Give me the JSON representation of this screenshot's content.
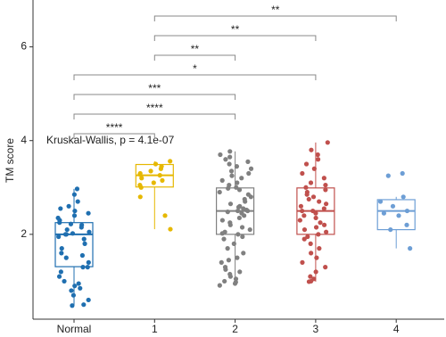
{
  "chart_data": {
    "type": "box",
    "y_label": "TM score",
    "annotation": "Kruskal-Wallis, p = 4.1e-07",
    "categories": [
      "Normal",
      "1",
      "2",
      "3",
      "4"
    ],
    "ylim": [
      0.19,
      7.0
    ],
    "yticks": [
      2,
      4,
      6
    ],
    "series": [
      {
        "name": "Normal",
        "color": "#1f6fb0",
        "whisker_low": 0.48,
        "q1": 1.31,
        "median": 2.0,
        "q3": 2.25,
        "whisker_high": 2.97,
        "points": [
          2.97,
          2.85,
          2.7,
          2.6,
          2.55,
          2.5,
          2.45,
          2.4,
          2.35,
          2.3,
          2.25,
          2.22,
          2.2,
          2.15,
          2.1,
          2.05,
          2.02,
          2.0,
          2.0,
          1.95,
          1.9,
          1.8,
          1.7,
          1.6,
          1.55,
          1.5,
          1.4,
          1.3,
          1.3,
          1.2,
          1.1,
          1.0,
          0.95,
          0.9,
          0.85,
          0.8,
          0.7,
          0.6,
          0.5,
          0.48
        ]
      },
      {
        "name": "1",
        "color": "#e6b800",
        "whisker_low": 2.11,
        "q1": 3.01,
        "median": 3.26,
        "q3": 3.49,
        "whisker_high": 3.56,
        "points": [
          3.56,
          3.5,
          3.45,
          3.4,
          3.35,
          3.3,
          3.28,
          3.26,
          3.2,
          3.15,
          3.1,
          3.05,
          3.0,
          2.8,
          2.4,
          2.11
        ]
      },
      {
        "name": "2",
        "color": "#808080",
        "whisker_low": 0.91,
        "q1": 2.0,
        "median": 2.5,
        "q3": 2.99,
        "whisker_high": 3.77,
        "points": [
          3.77,
          3.7,
          3.65,
          3.6,
          3.55,
          3.5,
          3.45,
          3.4,
          3.35,
          3.3,
          3.25,
          3.2,
          3.15,
          3.1,
          3.05,
          3.0,
          2.98,
          2.95,
          2.9,
          2.85,
          2.8,
          2.75,
          2.7,
          2.65,
          2.6,
          2.58,
          2.55,
          2.52,
          2.5,
          2.5,
          2.48,
          2.45,
          2.4,
          2.35,
          2.3,
          2.25,
          2.2,
          2.15,
          2.1,
          2.05,
          2.02,
          2.0,
          1.95,
          1.9,
          1.8,
          1.7,
          1.6,
          1.5,
          1.45,
          1.4,
          1.3,
          1.25,
          1.2,
          1.15,
          1.1,
          1.05,
          1.0,
          0.98,
          0.95,
          0.91
        ]
      },
      {
        "name": "3",
        "color": "#c0504d",
        "whisker_low": 0.99,
        "q1": 2.0,
        "median": 2.5,
        "q3": 2.99,
        "whisker_high": 3.96,
        "points": [
          3.96,
          3.8,
          3.7,
          3.6,
          3.5,
          3.4,
          3.3,
          3.2,
          3.1,
          3.05,
          3.0,
          2.95,
          2.9,
          2.85,
          2.8,
          2.75,
          2.7,
          2.65,
          2.6,
          2.55,
          2.5,
          2.5,
          2.45,
          2.4,
          2.35,
          2.3,
          2.25,
          2.2,
          2.15,
          2.1,
          2.05,
          2.0,
          1.95,
          1.9,
          1.8,
          1.7,
          1.6,
          1.5,
          1.4,
          1.3,
          1.2,
          1.1,
          1.05,
          1.0,
          0.99
        ]
      },
      {
        "name": "4",
        "color": "#6d9ed5",
        "whisker_low": 1.7,
        "q1": 2.1,
        "median": 2.5,
        "q3": 2.74,
        "whisker_high": 2.8,
        "points": [
          3.3,
          3.25,
          2.8,
          2.7,
          2.6,
          2.5,
          2.45,
          2.4,
          2.2,
          2.1,
          1.7
        ]
      }
    ],
    "comparisons": [
      {
        "from": "Normal",
        "to": "1",
        "label": "****"
      },
      {
        "from": "Normal",
        "to": "2",
        "label": "****"
      },
      {
        "from": "Normal",
        "to": "2",
        "label": "***"
      },
      {
        "from": "Normal",
        "to": "3",
        "label": "*"
      },
      {
        "from": "1",
        "to": "2",
        "label": "**"
      },
      {
        "from": "1",
        "to": "3",
        "label": "**"
      },
      {
        "from": "1",
        "to": "4",
        "label": "**"
      }
    ]
  }
}
